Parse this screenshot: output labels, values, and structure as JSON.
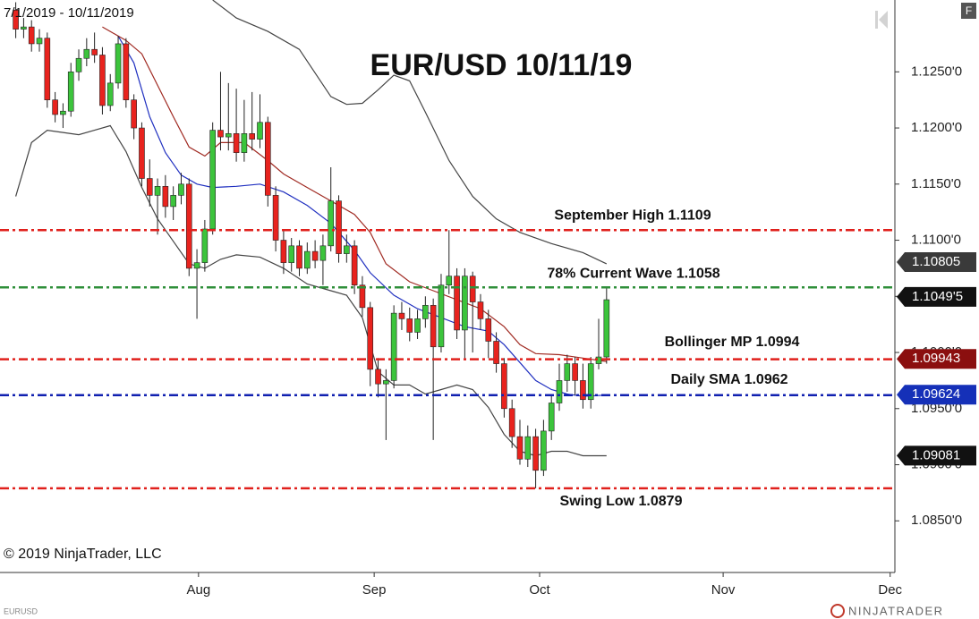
{
  "chart_data": {
    "type": "candlestick",
    "title": "EUR/USD 10/11/19",
    "date_range": "7/1/2019 - 10/11/2019",
    "copyright": "© 2019 NinjaTrader, LLC",
    "symbol": "EURUSD",
    "brand": "NINJATRADER",
    "panel_button": "F",
    "ylim": [
      1.0804,
      1.1314
    ],
    "yticks": [
      {
        "value": 1.085,
        "label": "1.0850'0"
      },
      {
        "value": 1.09,
        "label": "1.0900'0"
      },
      {
        "value": 1.095,
        "label": "1.0950'0"
      },
      {
        "value": 1.1,
        "label": "1.1000'0"
      },
      {
        "value": 1.105,
        "label": "1.1050'0"
      },
      {
        "value": 1.11,
        "label": "1.1100'0"
      },
      {
        "value": 1.115,
        "label": "1.1150'0"
      },
      {
        "value": 1.12,
        "label": "1.1200'0"
      },
      {
        "value": 1.125,
        "label": "1.1250'0"
      }
    ],
    "xlim": [
      -2,
      111.6
    ],
    "xticks": [
      {
        "value": 23.2,
        "label": "Aug"
      },
      {
        "value": 45.5,
        "label": "Sep"
      },
      {
        "value": 66.5,
        "label": "Oct"
      },
      {
        "value": 89.8,
        "label": "Nov"
      },
      {
        "value": 111,
        "label": "Dec"
      }
    ],
    "up_color": "#3cc43c",
    "down_color": "#e8231e",
    "candles": [
      [
        1.1305,
        1.1312,
        1.128,
        1.1288
      ],
      [
        1.1288,
        1.1298,
        1.128,
        1.129
      ],
      [
        1.129,
        1.1296,
        1.1268,
        1.1275
      ],
      [
        1.1275,
        1.1288,
        1.1268,
        1.128
      ],
      [
        1.128,
        1.1285,
        1.1218,
        1.1225
      ],
      [
        1.1225,
        1.1232,
        1.1205,
        1.1212
      ],
      [
        1.1212,
        1.1222,
        1.12,
        1.1215
      ],
      [
        1.1215,
        1.1258,
        1.121,
        1.125
      ],
      [
        1.125,
        1.127,
        1.1242,
        1.1262
      ],
      [
        1.1262,
        1.128,
        1.1255,
        1.127
      ],
      [
        1.127,
        1.1285,
        1.1258,
        1.1265
      ],
      [
        1.1265,
        1.1272,
        1.1212,
        1.122
      ],
      [
        1.122,
        1.1248,
        1.1215,
        1.124
      ],
      [
        1.124,
        1.1282,
        1.1235,
        1.1275
      ],
      [
        1.1275,
        1.128,
        1.1218,
        1.1225
      ],
      [
        1.1225,
        1.123,
        1.119,
        1.12
      ],
      [
        1.12,
        1.1205,
        1.1148,
        1.1155
      ],
      [
        1.1155,
        1.1172,
        1.113,
        1.114
      ],
      [
        1.114,
        1.1155,
        1.1105,
        1.1148
      ],
      [
        1.1148,
        1.1158,
        1.112,
        1.113
      ],
      [
        1.113,
        1.1148,
        1.1118,
        1.114
      ],
      [
        1.114,
        1.116,
        1.1132,
        1.115
      ],
      [
        1.115,
        1.1155,
        1.1068,
        1.1075
      ],
      [
        1.1075,
        1.1092,
        1.103,
        1.108
      ],
      [
        1.108,
        1.1118,
        1.1072,
        1.111
      ],
      [
        1.111,
        1.1205,
        1.1105,
        1.1198
      ],
      [
        1.1198,
        1.125,
        1.118,
        1.1192
      ],
      [
        1.1192,
        1.124,
        1.118,
        1.1195
      ],
      [
        1.1195,
        1.1235,
        1.117,
        1.1178
      ],
      [
        1.1178,
        1.1225,
        1.117,
        1.1195
      ],
      [
        1.1195,
        1.1232,
        1.118,
        1.119
      ],
      [
        1.119,
        1.123,
        1.1182,
        1.1205
      ],
      [
        1.1205,
        1.121,
        1.113,
        1.114
      ],
      [
        1.114,
        1.1148,
        1.109,
        1.11
      ],
      [
        1.11,
        1.1108,
        1.107,
        1.108
      ],
      [
        1.108,
        1.1102,
        1.1072,
        1.1095
      ],
      [
        1.1095,
        1.11,
        1.1068,
        1.1075
      ],
      [
        1.1075,
        1.1098,
        1.107,
        1.109
      ],
      [
        1.109,
        1.11,
        1.1075,
        1.1082
      ],
      [
        1.1082,
        1.1105,
        1.106,
        1.1095
      ],
      [
        1.1095,
        1.1165,
        1.109,
        1.1135
      ],
      [
        1.1135,
        1.114,
        1.108,
        1.1088
      ],
      [
        1.1088,
        1.1105,
        1.108,
        1.1095
      ],
      [
        1.1095,
        1.11,
        1.1052,
        1.106
      ],
      [
        1.106,
        1.1068,
        1.1032,
        1.104
      ],
      [
        1.104,
        1.1045,
        1.097,
        1.0985
      ],
      [
        1.0985,
        1.0995,
        1.096,
        1.0972
      ],
      [
        1.0972,
        1.0985,
        1.0922,
        1.0975
      ],
      [
        1.0975,
        1.1042,
        1.0968,
        1.1035
      ],
      [
        1.1035,
        1.1045,
        1.102,
        1.103
      ],
      [
        1.103,
        1.104,
        1.101,
        1.1018
      ],
      [
        1.1018,
        1.1038,
        1.1012,
        1.103
      ],
      [
        1.103,
        1.105,
        1.1022,
        1.1042
      ],
      [
        1.1042,
        1.1048,
        1.0922,
        1.1005
      ],
      [
        1.1005,
        1.107,
        1.1,
        1.106
      ],
      [
        1.106,
        1.1109,
        1.1052,
        1.1068
      ],
      [
        1.1068,
        1.1075,
        1.1012,
        1.102
      ],
      [
        1.102,
        1.1075,
        1.0995,
        1.1068
      ],
      [
        1.1068,
        1.1072,
        1.1,
        1.1045
      ],
      [
        1.1045,
        1.1052,
        1.102,
        1.103
      ],
      [
        1.103,
        1.1038,
        1.0995,
        1.101
      ],
      [
        1.101,
        1.1018,
        1.0982,
        1.099
      ],
      [
        1.099,
        1.0995,
        1.0942,
        1.095
      ],
      [
        1.095,
        1.0958,
        1.0915,
        1.0925
      ],
      [
        1.0925,
        1.094,
        1.09,
        1.0905
      ],
      [
        1.0905,
        1.0935,
        1.0898,
        1.0925
      ],
      [
        1.0925,
        1.0932,
        1.0879,
        1.0895
      ],
      [
        1.0895,
        1.094,
        1.089,
        1.093
      ],
      [
        1.093,
        1.0962,
        1.0922,
        1.0955
      ],
      [
        1.0955,
        1.099,
        1.0948,
        1.0975
      ],
      [
        1.0975,
        1.0998,
        1.0965,
        1.099
      ],
      [
        1.099,
        1.0996,
        1.0962,
        1.0975
      ],
      [
        1.0975,
        1.099,
        1.095,
        1.0958
      ],
      [
        1.0958,
        1.0996,
        1.095,
        1.099
      ],
      [
        1.099,
        1.103,
        1.0985,
        1.0996
      ],
      [
        1.0996,
        1.1058,
        1.099,
        1.1047
      ]
    ],
    "series": [
      {
        "color": "#2030c0",
        "x": [
          13,
          15,
          17,
          19,
          21,
          23,
          25,
          28,
          31,
          34,
          37,
          40,
          43,
          45,
          48,
          51,
          54,
          57,
          60,
          62,
          64,
          66,
          68,
          70,
          72,
          75
        ],
        "values": [
          1.1282,
          1.1258,
          1.121,
          1.1178,
          1.1158,
          1.115,
          1.1147,
          1.1148,
          1.115,
          1.1143,
          1.1131,
          1.1115,
          1.1091,
          1.1071,
          1.1051,
          1.1039,
          1.1031,
          1.1023,
          1.1019,
          1.1007,
          1.0991,
          1.0975,
          1.0967,
          1.0963,
          1.0961,
          1.0962
        ]
      },
      {
        "color": "#a02a22",
        "x": [
          11,
          14,
          16,
          18,
          20,
          22,
          24,
          26,
          29,
          32,
          34,
          37,
          40,
          43,
          45,
          47,
          50,
          53,
          56,
          59,
          62,
          64,
          66,
          69,
          72,
          75
        ],
        "values": [
          1.129,
          1.1278,
          1.1266,
          1.1238,
          1.121,
          1.1183,
          1.1175,
          1.1187,
          1.1187,
          1.1171,
          1.1159,
          1.1147,
          1.1135,
          1.1123,
          1.1107,
          1.1079,
          1.1063,
          1.1055,
          1.1047,
          1.1039,
          1.1023,
          1.1007,
          1.0999,
          1.0998,
          1.0995,
          1.0992
        ]
      },
      {
        "color": "#444444",
        "x": [
          25,
          28,
          32,
          36,
          40,
          42,
          44,
          46,
          48,
          50,
          52,
          55,
          58,
          61,
          64,
          68,
          72,
          75
        ],
        "values": [
          1.1314,
          1.1298,
          1.1286,
          1.127,
          1.1228,
          1.1221,
          1.1222,
          1.1234,
          1.1247,
          1.1242,
          1.1214,
          1.1171,
          1.1139,
          1.1119,
          1.1107,
          1.1097,
          1.1089,
          1.1079
        ]
      },
      {
        "color": "#444444",
        "x": [
          0,
          2,
          4,
          6,
          8,
          10,
          12,
          14,
          16,
          18,
          20,
          22,
          24,
          26,
          28,
          31,
          34,
          37,
          40,
          42,
          44,
          46,
          48,
          50,
          52,
          54,
          56,
          58,
          60,
          62,
          64,
          66,
          68,
          70,
          72,
          75
        ],
        "values": [
          1.1139,
          1.1187,
          1.1198,
          1.1196,
          1.1194,
          1.1198,
          1.1202,
          1.1179,
          1.1147,
          1.1119,
          1.1099,
          1.1079,
          1.1075,
          1.1083,
          1.1087,
          1.1085,
          1.1075,
          1.1061,
          1.1055,
          1.1051,
          1.1031,
          1.0983,
          1.0971,
          1.0971,
          1.0963,
          1.0967,
          1.0971,
          1.0967,
          1.0951,
          1.0927,
          1.0912,
          1.0908,
          1.0912,
          1.0912,
          1.0908,
          1.0908
        ]
      }
    ],
    "levels": [
      {
        "label": "September High 1.1109",
        "value": 1.1109,
        "color": "#e0201c"
      },
      {
        "label": "78% Current Wave 1.1058",
        "value": 1.1058,
        "color": "#2f8f3a"
      },
      {
        "label": "Bollinger MP 1.0994",
        "value": 1.0994,
        "color": "#e0201c"
      },
      {
        "label": "Daily SMA 1.0962",
        "value": 1.0962,
        "color": "#1020b0"
      },
      {
        "label": "Swing Low 1.0879",
        "value": 1.0879,
        "color": "#e0201c"
      }
    ],
    "price_tags": [
      {
        "value": 1.10805,
        "color": "#3a3a3a"
      },
      {
        "value": 1.10495,
        "label": "1.1049'5",
        "color": "#111111"
      },
      {
        "value": 1.09943,
        "color": "#8b0f0f"
      },
      {
        "value": 1.09624,
        "color": "#1530b8"
      },
      {
        "value": 1.09081,
        "color": "#111111"
      }
    ]
  }
}
